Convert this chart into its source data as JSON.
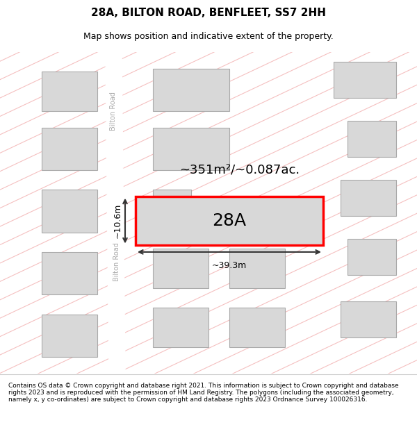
{
  "title": "28A, BILTON ROAD, BENFLEET, SS7 2HH",
  "subtitle": "Map shows position and indicative extent of the property.",
  "footer": "Contains OS data © Crown copyright and database right 2021. This information is subject to Crown copyright and database rights 2023 and is reproduced with the permission of HM Land Registry. The polygons (including the associated geometry, namely x, y co-ordinates) are subject to Crown copyright and database rights 2023 Ordnance Survey 100026316.",
  "area_label": "~351m²/~0.087ac.",
  "width_label": "~39.3m",
  "height_label": "~10.6m",
  "plot_label": "28A",
  "bg_color": "#f0eeee",
  "road_color": "#ffffff",
  "building_fill": "#d8d8d8",
  "building_edge": "#aaaaaa",
  "plot_fill": "#d8d8d8",
  "plot_edge": "#ff0000",
  "road_stripe_color": "#f5c0c0",
  "road_label_color": "#aaaaaa",
  "dim_line_color": "#333333"
}
